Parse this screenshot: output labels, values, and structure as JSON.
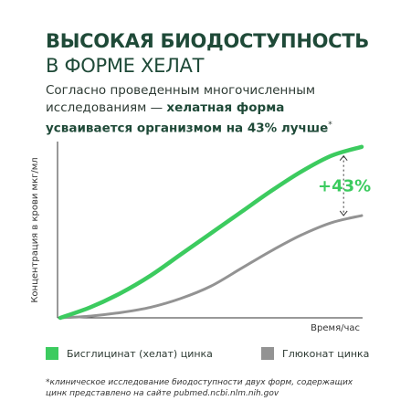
{
  "header": {
    "title_line1": "ВЫСОКАЯ БИОДОСТУПНОСТЬ",
    "title_line2": "В ФОРМЕ ХЕЛАТ"
  },
  "intro": {
    "text_plain": "Согласно проведенным многочисленным исследованиям — ",
    "text_bold": "хелатная форма усваивается организмом на 43% лучше",
    "text_mark": "*"
  },
  "chart_data": {
    "type": "line",
    "xlabel": "Время/час",
    "ylabel": "Концентрация в крови мкг/мл",
    "x": [
      0,
      1,
      2,
      3,
      4,
      5,
      6,
      7,
      8,
      9,
      10
    ],
    "xlim": [
      0,
      10
    ],
    "ylim": [
      0,
      100
    ],
    "grid": false,
    "legend": "bottom",
    "series": [
      {
        "name": "Бисглицинат (хелат) цинка",
        "color": "#3ccb5f",
        "values": [
          0,
          6,
          14,
          24,
          36,
          48,
          60,
          72,
          83,
          92,
          97
        ]
      },
      {
        "name": "Глюконат цинка",
        "color": "#939393",
        "values": [
          0,
          1,
          3,
          6,
          11,
          18,
          28,
          38,
          47,
          54,
          58
        ]
      }
    ],
    "annotation": {
      "text": "+43%",
      "x": 9.4,
      "from": 56,
      "to": 95,
      "color": "#3ccb5f"
    }
  },
  "footnote": "*клиническое исследование биодоступности двух форм, содержащих цинк представлено на сайте pubmed.ncbi.nlm.nih.gov"
}
